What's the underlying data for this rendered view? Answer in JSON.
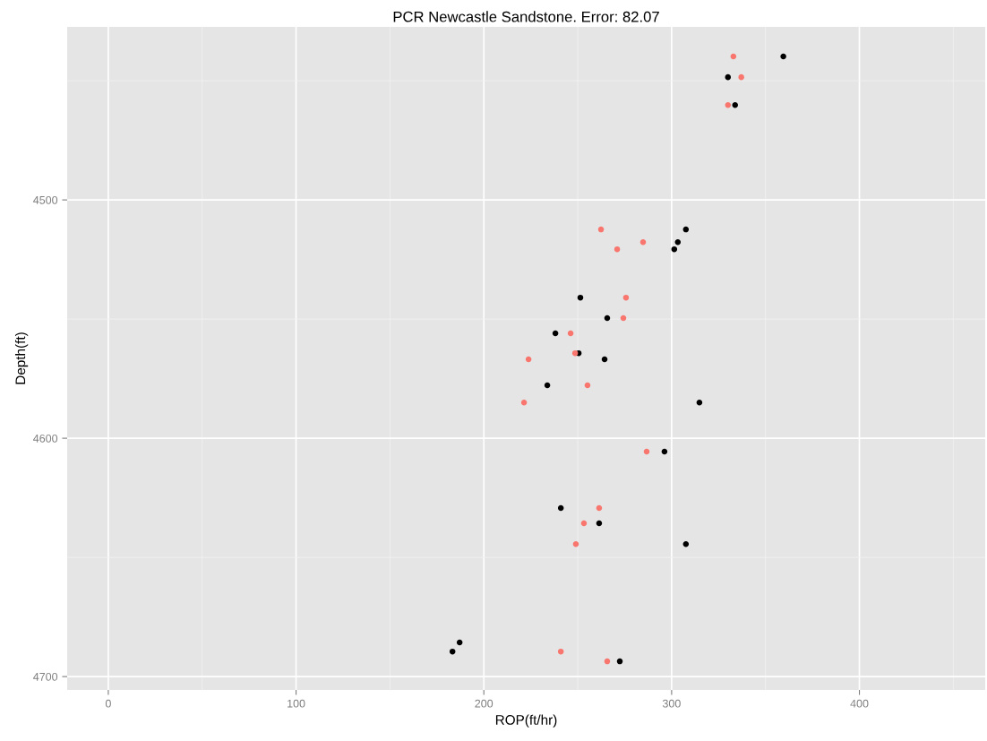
{
  "chart_data": {
    "type": "scatter",
    "title": "PCR Newcastle Sandstone. Error: 82.07",
    "xlabel": "ROP(ft/hr)",
    "ylabel": "Depth(ft)",
    "xlim": [
      -21.9,
      467
    ],
    "xticks": [
      0,
      100,
      200,
      300,
      400
    ],
    "ylim": [
      4705.6,
      4427.4
    ],
    "yticks": [
      4500,
      4600,
      4700
    ],
    "grid": true,
    "marker": "circle",
    "series": [
      {
        "color": "#000000",
        "x": [
          359.5,
          330.0,
          333.8,
          307.6,
          303.3,
          301.4,
          251.4,
          265.7,
          238.1,
          250.5,
          264.3,
          233.8,
          314.8,
          296.2,
          241.0,
          261.4,
          307.6,
          187.1,
          183.3,
          272.4
        ],
        "values": [
          4439.8,
          4448.5,
          4460.2,
          4512.4,
          4517.7,
          4520.7,
          4541.0,
          4549.6,
          4556.0,
          4564.3,
          4566.9,
          4577.8,
          4585.0,
          4605.6,
          4629.3,
          4635.7,
          4644.4,
          4685.7,
          4689.5,
          4693.6
        ]
      },
      {
        "color": "#f8766d",
        "x": [
          332.9,
          337.1,
          330.0,
          262.4,
          284.8,
          271.0,
          275.7,
          274.3,
          246.2,
          248.6,
          223.8,
          255.2,
          221.4,
          286.7,
          261.4,
          253.3,
          249.0,
          241.0,
          265.7
        ],
        "values": [
          4439.8,
          4448.5,
          4460.2,
          4512.4,
          4517.7,
          4520.7,
          4541.0,
          4549.6,
          4556.0,
          4564.3,
          4566.9,
          4577.8,
          4585.0,
          4605.6,
          4629.3,
          4635.7,
          4644.4,
          4689.5,
          4693.6
        ]
      }
    ]
  }
}
